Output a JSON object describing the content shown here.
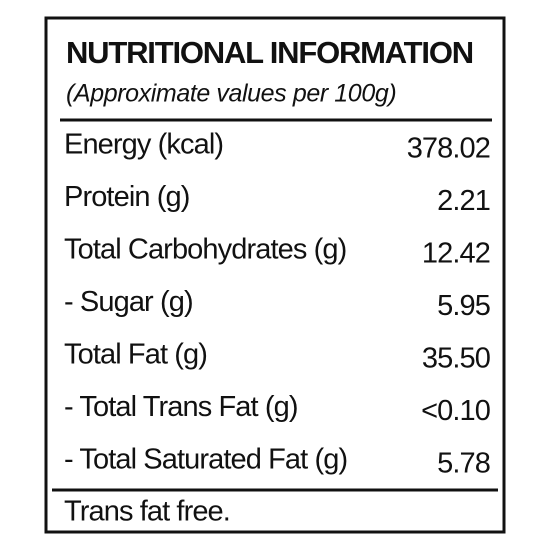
{
  "label": {
    "title": "NUTRITIONAL INFORMATION",
    "subtitle": "(Approximate values per 100g)",
    "rows": [
      [
        "Energy (kcal)",
        "378.02"
      ],
      [
        "Protein (g)",
        "2.21"
      ],
      [
        "Total Carbohydrates (g)",
        "12.42"
      ],
      [
        "- Sugar (g)",
        "5.95"
      ],
      [
        "Total Fat (g)",
        "35.50"
      ],
      [
        "- Total Trans Fat (g)",
        "<0.10"
      ],
      [
        "- Total Saturated Fat (g)",
        "5.78"
      ]
    ],
    "footer": "Trans fat free."
  }
}
